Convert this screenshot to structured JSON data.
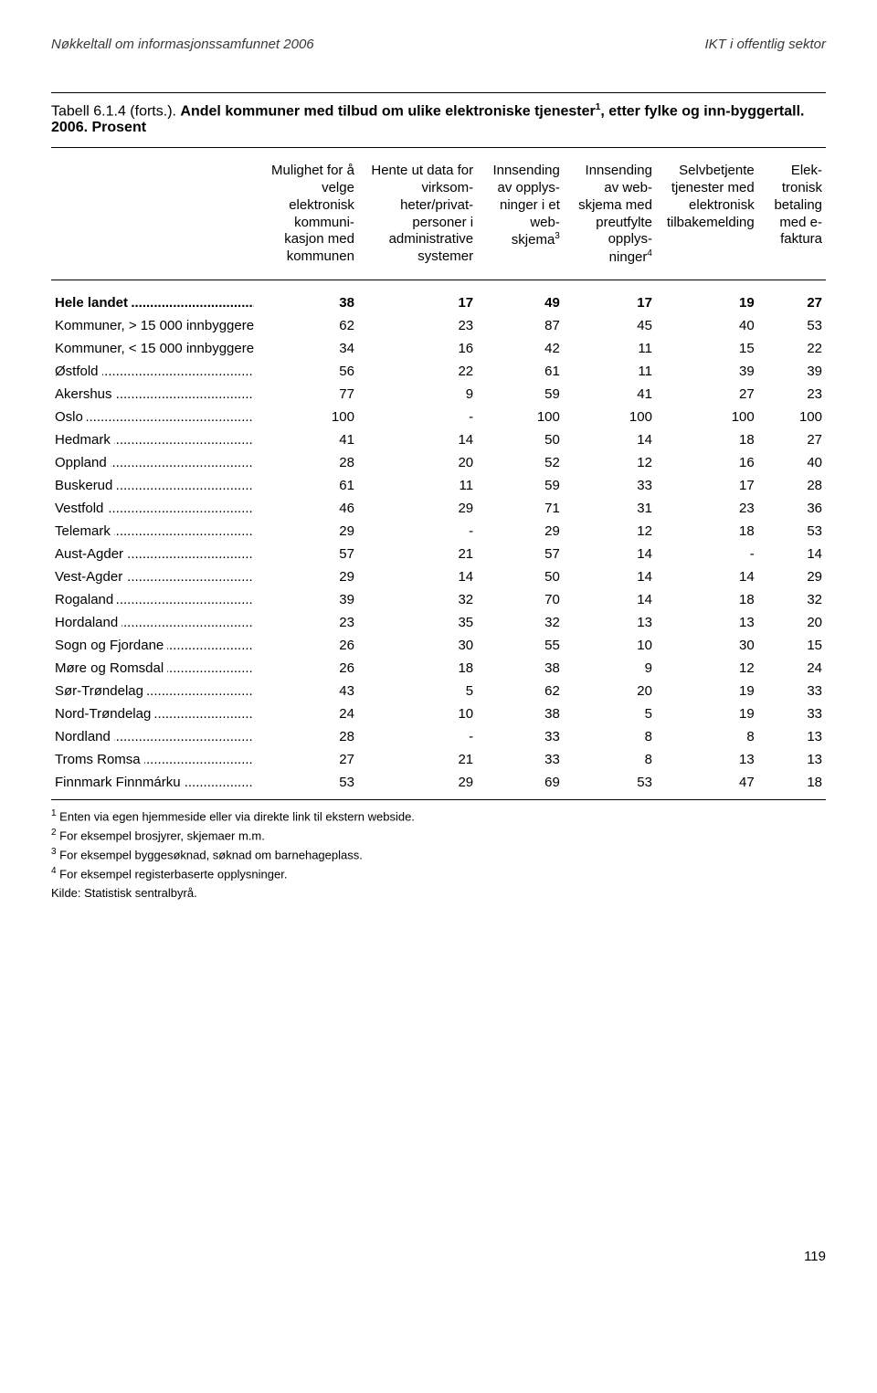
{
  "header": {
    "left": "Nøkkeltall om informasjonssamfunnet 2006",
    "right": "IKT i offentlig sektor"
  },
  "caption": {
    "table_no": "Tabell 6.1.4",
    "forts": "(forts.).",
    "title_part1": "Andel kommuner med tilbud om ulike elektroniske tjenester",
    "sup1": "1",
    "title_part2": ", etter fylke og inn-byggertall. 2006. Prosent"
  },
  "columns": {
    "c1": "Mulighet for å velge elektronisk kommuni­kasjon med kommunen",
    "c2": "Hente ut data for virksom­heter/privat­personer i administrative systemer",
    "c3_a": "Innsending av opplys­ninger i et web-",
    "c3_b": "skjema",
    "c3_sup": "3",
    "c4_a": "Innsending av web­skjema med preutfylte opplys-",
    "c4_b": "ninger",
    "c4_sup": "4",
    "c5": "Selvbetjente tjenester med elek­tronisk tilbake­melding",
    "c6": "Elek­tronisk betaling med e-faktura"
  },
  "rows": [
    {
      "region": "Hele landet",
      "v": [
        38,
        17,
        49,
        17,
        19,
        27
      ],
      "bold": true
    },
    {
      "region": "Kommuner, > 15 000 innbyggere",
      "v": [
        62,
        23,
        87,
        45,
        40,
        53
      ],
      "noleader": true
    },
    {
      "region": "Kommuner, < 15 000 innbyggere",
      "v": [
        34,
        16,
        42,
        11,
        15,
        22
      ],
      "noleader": true
    },
    {
      "region": "Østfold",
      "v": [
        56,
        22,
        61,
        11,
        39,
        39
      ]
    },
    {
      "region": "Akershus",
      "v": [
        77,
        9,
        59,
        41,
        27,
        23
      ]
    },
    {
      "region": "Oslo",
      "v": [
        100,
        "-",
        100,
        100,
        100,
        100
      ]
    },
    {
      "region": "Hedmark",
      "v": [
        41,
        14,
        50,
        14,
        18,
        27
      ]
    },
    {
      "region": "Oppland",
      "v": [
        28,
        20,
        52,
        12,
        16,
        40
      ]
    },
    {
      "region": "Buskerud",
      "v": [
        61,
        11,
        59,
        33,
        17,
        28
      ]
    },
    {
      "region": "Vestfold",
      "v": [
        46,
        29,
        71,
        31,
        23,
        36
      ]
    },
    {
      "region": "Telemark",
      "v": [
        29,
        "-",
        29,
        12,
        18,
        53
      ]
    },
    {
      "region": "Aust-Agder",
      "v": [
        57,
        21,
        57,
        14,
        "-",
        14
      ]
    },
    {
      "region": "Vest-Agder",
      "v": [
        29,
        14,
        50,
        14,
        14,
        29
      ]
    },
    {
      "region": "Rogaland",
      "v": [
        39,
        32,
        70,
        14,
        18,
        32
      ]
    },
    {
      "region": "Hordaland",
      "v": [
        23,
        35,
        32,
        13,
        13,
        20
      ]
    },
    {
      "region": "Sogn og Fjordane",
      "v": [
        26,
        30,
        55,
        10,
        30,
        15
      ]
    },
    {
      "region": "Møre og Romsdal",
      "v": [
        26,
        18,
        38,
        9,
        12,
        24
      ]
    },
    {
      "region": "Sør-Trøndelag",
      "v": [
        43,
        5,
        62,
        20,
        19,
        33
      ]
    },
    {
      "region": "Nord-Trøndelag",
      "v": [
        24,
        10,
        38,
        5,
        19,
        33
      ]
    },
    {
      "region": "Nordland",
      "v": [
        28,
        "-",
        33,
        8,
        8,
        13
      ]
    },
    {
      "region": "Troms Romsa",
      "v": [
        27,
        21,
        33,
        8,
        13,
        13
      ]
    },
    {
      "region": "Finnmark Finnmárku",
      "v": [
        53,
        29,
        69,
        53,
        47,
        18
      ]
    }
  ],
  "footnotes": {
    "f1_sup": "1",
    "f1": " Enten via egen hjemmeside eller via direkte link til ekstern webside.",
    "f2_sup": "2",
    "f2": " For eksempel brosjyrer, skjemaer m.m.",
    "f3_sup": "3",
    "f3": " For eksempel byggesøknad, søknad om barnehageplass.",
    "f4_sup": "4",
    "f4": " For eksempel registerbaserte opplysninger.",
    "source": "Kilde: Statistisk sentralbyrå."
  },
  "page_number": "119"
}
